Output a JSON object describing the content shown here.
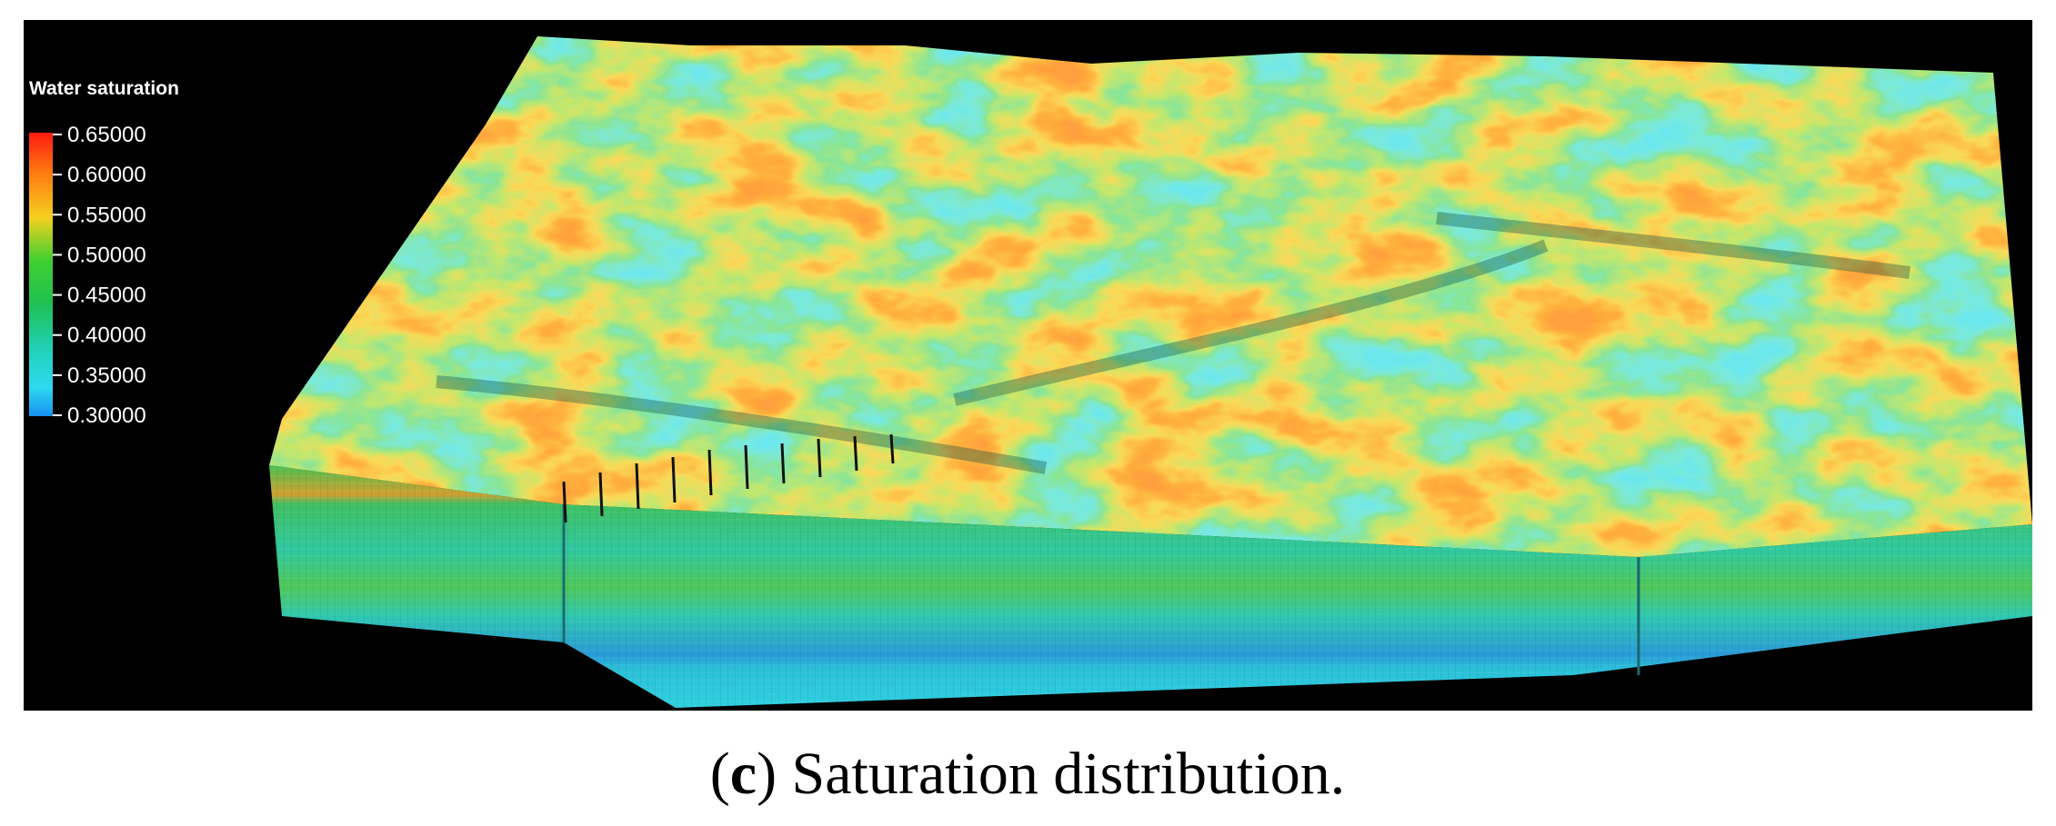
{
  "legend": {
    "title": "Water saturation",
    "range": [
      0.3,
      0.65
    ],
    "ticks": [
      {
        "value": 0.65,
        "label": "0.65000"
      },
      {
        "value": 0.6,
        "label": "0.60000"
      },
      {
        "value": 0.55,
        "label": "0.55000"
      },
      {
        "value": 0.5,
        "label": "0.50000"
      },
      {
        "value": 0.45,
        "label": "0.45000"
      },
      {
        "value": 0.4,
        "label": "0.40000"
      },
      {
        "value": 0.35,
        "label": "0.35000"
      },
      {
        "value": 0.3,
        "label": "0.30000"
      }
    ]
  },
  "caption": {
    "prefix": "(",
    "label": "c",
    "text": ") Saturation distribution."
  }
}
